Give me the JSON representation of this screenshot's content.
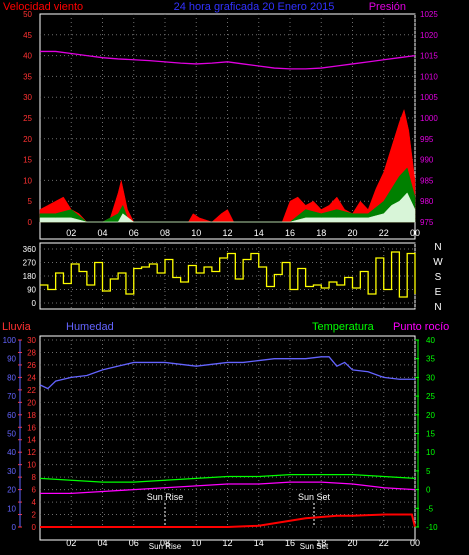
{
  "chart_data": [
    {
      "type": "area",
      "panel": "wind_pressure",
      "title_left": "Velocidad viento",
      "title_center": "24 hora graficada   20 Enero 2015",
      "title_right": "Presión",
      "x_ticks": [
        "02",
        "04",
        "06",
        "08",
        "10",
        "12",
        "14",
        "16",
        "18",
        "20",
        "22",
        "00"
      ],
      "y_left_ticks": [
        "0",
        "5",
        "10",
        "15",
        "20",
        "25",
        "30",
        "35",
        "40",
        "45",
        "50"
      ],
      "y_left_range": [
        0,
        50
      ],
      "y_right_ticks": [
        "975",
        "980",
        "985",
        "990",
        "995",
        "1000",
        "1005",
        "1010",
        "1015",
        "1020",
        "1025"
      ],
      "y_right_range": [
        975,
        1025
      ],
      "grid": true,
      "series": [
        {
          "name": "gust",
          "color": "#ff0000",
          "x": [
            0,
            0.5,
            1,
            1.5,
            2,
            2.5,
            3,
            3.5,
            4,
            4.5,
            5,
            5.2,
            5.6,
            6,
            9.5,
            9.8,
            10.2,
            11,
            11.6,
            12,
            12.4,
            13,
            15.5,
            16,
            16.5,
            17,
            17.5,
            18,
            18.5,
            19,
            19.5,
            20,
            20.5,
            21,
            21.5,
            22,
            22.5,
            23,
            23.3,
            23.6,
            24
          ],
          "values": [
            3,
            4,
            5,
            6,
            3,
            2,
            0,
            0,
            0,
            1,
            7,
            10,
            3,
            0,
            0,
            2,
            1,
            0,
            2,
            3,
            0,
            0,
            0,
            5,
            6,
            4,
            5,
            3,
            4,
            6,
            3,
            2,
            5,
            3,
            8,
            12,
            18,
            24,
            27,
            22,
            10
          ]
        },
        {
          "name": "average",
          "color": "#008000",
          "x": [
            0,
            1,
            2,
            3,
            4,
            5,
            5.3,
            5.6,
            6,
            16,
            17,
            18,
            19,
            20,
            21,
            22,
            22.5,
            23,
            23.5,
            24
          ],
          "values": [
            2,
            2,
            3,
            0,
            0,
            2,
            4,
            1,
            0,
            0,
            3,
            2,
            3,
            2,
            2,
            5,
            8,
            11,
            13,
            6
          ]
        },
        {
          "name": "minimum",
          "color": "#d8f5d8",
          "x": [
            0,
            1,
            2,
            3,
            5,
            5.3,
            6,
            16,
            17,
            18,
            19,
            20,
            21,
            22,
            22.5,
            23,
            23.5,
            24
          ],
          "values": [
            1,
            1,
            1,
            0,
            0,
            2,
            0,
            0,
            1,
            1,
            1,
            1,
            1,
            2,
            4,
            5,
            7,
            3
          ]
        },
        {
          "name": "pressure",
          "color": "#e000e0",
          "axis": "right",
          "x": [
            0,
            1,
            2,
            3,
            4,
            5,
            6,
            7,
            8,
            9,
            10,
            11,
            12,
            13,
            14,
            15,
            16,
            17,
            18,
            19,
            20,
            21,
            22,
            23,
            24
          ],
          "values": [
            1016,
            1016,
            1015.5,
            1015,
            1014.5,
            1014.2,
            1014,
            1013.8,
            1013.5,
            1013.2,
            1013,
            1013.2,
            1013.5,
            1013,
            1012.5,
            1012,
            1011.8,
            1011.8,
            1012,
            1012.5,
            1013,
            1013.5,
            1014,
            1014.5,
            1015
          ]
        }
      ]
    },
    {
      "type": "line",
      "panel": "wind_direction",
      "y_left_ticks": [
        "0",
        "90",
        "180",
        "270",
        "360"
      ],
      "y_range": [
        0,
        360
      ],
      "y_right_labels": [
        "N",
        "W",
        "S",
        "E",
        "N"
      ],
      "grid": true,
      "series": [
        {
          "name": "direction",
          "color": "#ffff00",
          "x": [
            0,
            0.5,
            1,
            1.5,
            2,
            2.5,
            3,
            3.5,
            4,
            4.5,
            5,
            5.5,
            6,
            6.5,
            7,
            7.5,
            8,
            8.5,
            9,
            9.5,
            10,
            10.5,
            11,
            11.5,
            12,
            12.5,
            13,
            13.5,
            14,
            14.5,
            15,
            15.5,
            16,
            16.5,
            17,
            17.5,
            18,
            18.5,
            19,
            19.5,
            20,
            20.5,
            21,
            21.5,
            22,
            22.5,
            23,
            23.5,
            24
          ],
          "values": [
            120,
            90,
            200,
            130,
            260,
            210,
            120,
            270,
            80,
            160,
            200,
            60,
            230,
            240,
            260,
            200,
            290,
            170,
            140,
            250,
            200,
            240,
            210,
            300,
            330,
            160,
            290,
            330,
            240,
            110,
            190,
            270,
            90,
            230,
            110,
            120,
            100,
            140,
            120,
            170,
            100,
            210,
            60,
            300,
            90,
            340,
            40,
            330,
            60
          ]
        }
      ]
    },
    {
      "type": "line",
      "panel": "rain_humidity_temperature",
      "legend": [
        "Lluvia",
        "Humedad",
        "Temperatura",
        "Punto rocío"
      ],
      "x_ticks": [
        "02",
        "04",
        "06",
        "08",
        "10",
        "12",
        "14",
        "16",
        "18",
        "20",
        "22",
        "00"
      ],
      "humidity_ticks": [
        "0",
        "10",
        "20",
        "30",
        "40",
        "50",
        "60",
        "70",
        "80",
        "90",
        "100"
      ],
      "rain_ticks": [
        "0",
        "2",
        "4",
        "6",
        "8",
        "10",
        "12",
        "14",
        "16",
        "18",
        "20",
        "22",
        "24",
        "26",
        "28",
        "30"
      ],
      "temperature_ticks": [
        "-10",
        "-5",
        "0",
        "5",
        "10",
        "15",
        "20",
        "25",
        "30",
        "35",
        "40"
      ],
      "sunrise_label": "Sun Rise",
      "sunset_label": "Sun Set",
      "sunrise_time": "Sun Rise",
      "sunset_time": "Sun Set",
      "grid": true,
      "series": [
        {
          "name": "Humedad",
          "color": "#6464ff",
          "axis": "humidity",
          "x": [
            0,
            0.5,
            1,
            2,
            3,
            4,
            5,
            6,
            7,
            8,
            9,
            10,
            11,
            12,
            13,
            14,
            15,
            16,
            17,
            18,
            18.5,
            19,
            19.5,
            20,
            21,
            22,
            23,
            24
          ],
          "values": [
            76,
            74,
            78,
            80,
            81,
            84,
            86,
            88,
            88,
            88,
            87,
            86,
            87,
            88,
            88,
            89,
            90,
            90,
            90,
            91,
            91,
            86,
            88,
            84,
            83,
            80,
            79,
            79
          ]
        },
        {
          "name": "Temperatura",
          "color": "#00ff00",
          "axis": "temperature",
          "x": [
            0,
            2,
            4,
            6,
            8,
            10,
            12,
            14,
            16,
            18,
            20,
            22,
            24
          ],
          "values": [
            3,
            2.5,
            2,
            2,
            2.5,
            3,
            3.5,
            3.5,
            4,
            4,
            4,
            3.5,
            3
          ]
        },
        {
          "name": "Punto rocío",
          "color": "#ff00ff",
          "axis": "temperature",
          "x": [
            0,
            2,
            4,
            6,
            8,
            10,
            12,
            14,
            16,
            18,
            20,
            22,
            24
          ],
          "values": [
            -1,
            -1,
            -0.5,
            0,
            0.5,
            1,
            1.5,
            1.5,
            2,
            2,
            1.5,
            0.5,
            0
          ]
        },
        {
          "name": "Lluvia",
          "color": "#ff0000",
          "axis": "rain",
          "x": [
            0,
            2,
            4,
            6,
            8,
            10,
            12,
            14,
            15,
            16,
            17,
            18,
            19,
            20,
            21,
            22,
            23,
            23.5,
            23.8,
            24
          ],
          "values": [
            0,
            0,
            0,
            0,
            0,
            0,
            0,
            0.2,
            0.6,
            1.0,
            1.4,
            1.6,
            1.8,
            1.8,
            1.9,
            2.0,
            2.0,
            2.0,
            2.0,
            0
          ]
        }
      ]
    }
  ]
}
